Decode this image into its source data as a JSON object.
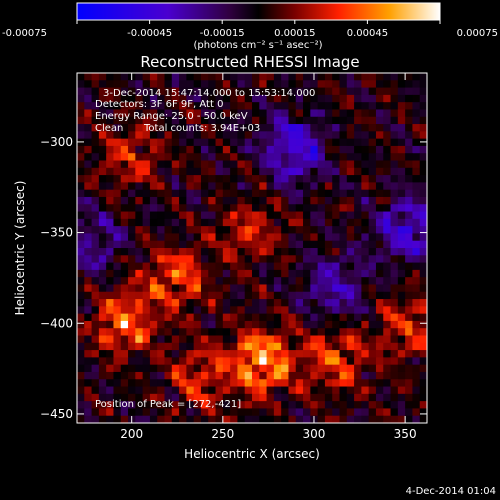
{
  "chart_data": {
    "type": "heatmap",
    "title": "Reconstructed RHESSI Image",
    "xlabel": "Heliocentric X (arcsec)",
    "ylabel": "Heliocentric Y (arcsec)",
    "xlim": [
      170,
      362
    ],
    "ylim": [
      -455,
      -262
    ],
    "x_ticks": [
      200,
      250,
      300,
      350
    ],
    "y_ticks": [
      -300,
      -350,
      -400,
      -450
    ],
    "colorbar": {
      "range": [
        -0.00075,
        0.00075
      ],
      "tick_values": [
        -0.00075,
        -0.00045,
        -0.00015,
        0.00015,
        0.00045,
        0.00075
      ],
      "tick_labels": [
        "-0.00075",
        "-0.00045",
        "-0.00015",
        "0.00015",
        "0.00045",
        "0.00075"
      ],
      "unit_label": "(photons cm⁻² s⁻¹ asec⁻²)"
    },
    "annotations": {
      "time": "3-Dec-2014 15:47:14.000 to 15:53:14.000",
      "detectors": "Detectors: 3F 6F 9F, Att 0",
      "energy": "Energy Range: 25.0 - 50.0 keV",
      "clean": "Clean",
      "counts": "Total counts: 3.94E+03",
      "peak": "Position of Peak = [272,-421]"
    },
    "peak": {
      "x": 272,
      "y": -421
    },
    "sources": [
      {
        "x": 272,
        "y": -421,
        "amp": 0.00075
      },
      {
        "x": 196,
        "y": -400,
        "amp": 0.00055
      },
      {
        "x": 224,
        "y": -375,
        "amp": 0.00048
      },
      {
        "x": 312,
        "y": -420,
        "amp": 0.00045
      },
      {
        "x": 352,
        "y": -402,
        "amp": 0.0004
      },
      {
        "x": 238,
        "y": -430,
        "amp": 0.00038
      },
      {
        "x": 200,
        "y": -308,
        "amp": 0.00035
      },
      {
        "x": 265,
        "y": -350,
        "amp": 0.00033
      }
    ],
    "negative_regions": [
      {
        "x": 289,
        "y": -304,
        "amp": -0.0006
      },
      {
        "x": 351,
        "y": -348,
        "amp": -0.00055
      },
      {
        "x": 312,
        "y": -380,
        "amp": -0.0004
      },
      {
        "x": 178,
        "y": -355,
        "amp": -0.00035
      }
    ]
  },
  "footer": {
    "timestamp": "4-Dec-2014 01:04"
  }
}
